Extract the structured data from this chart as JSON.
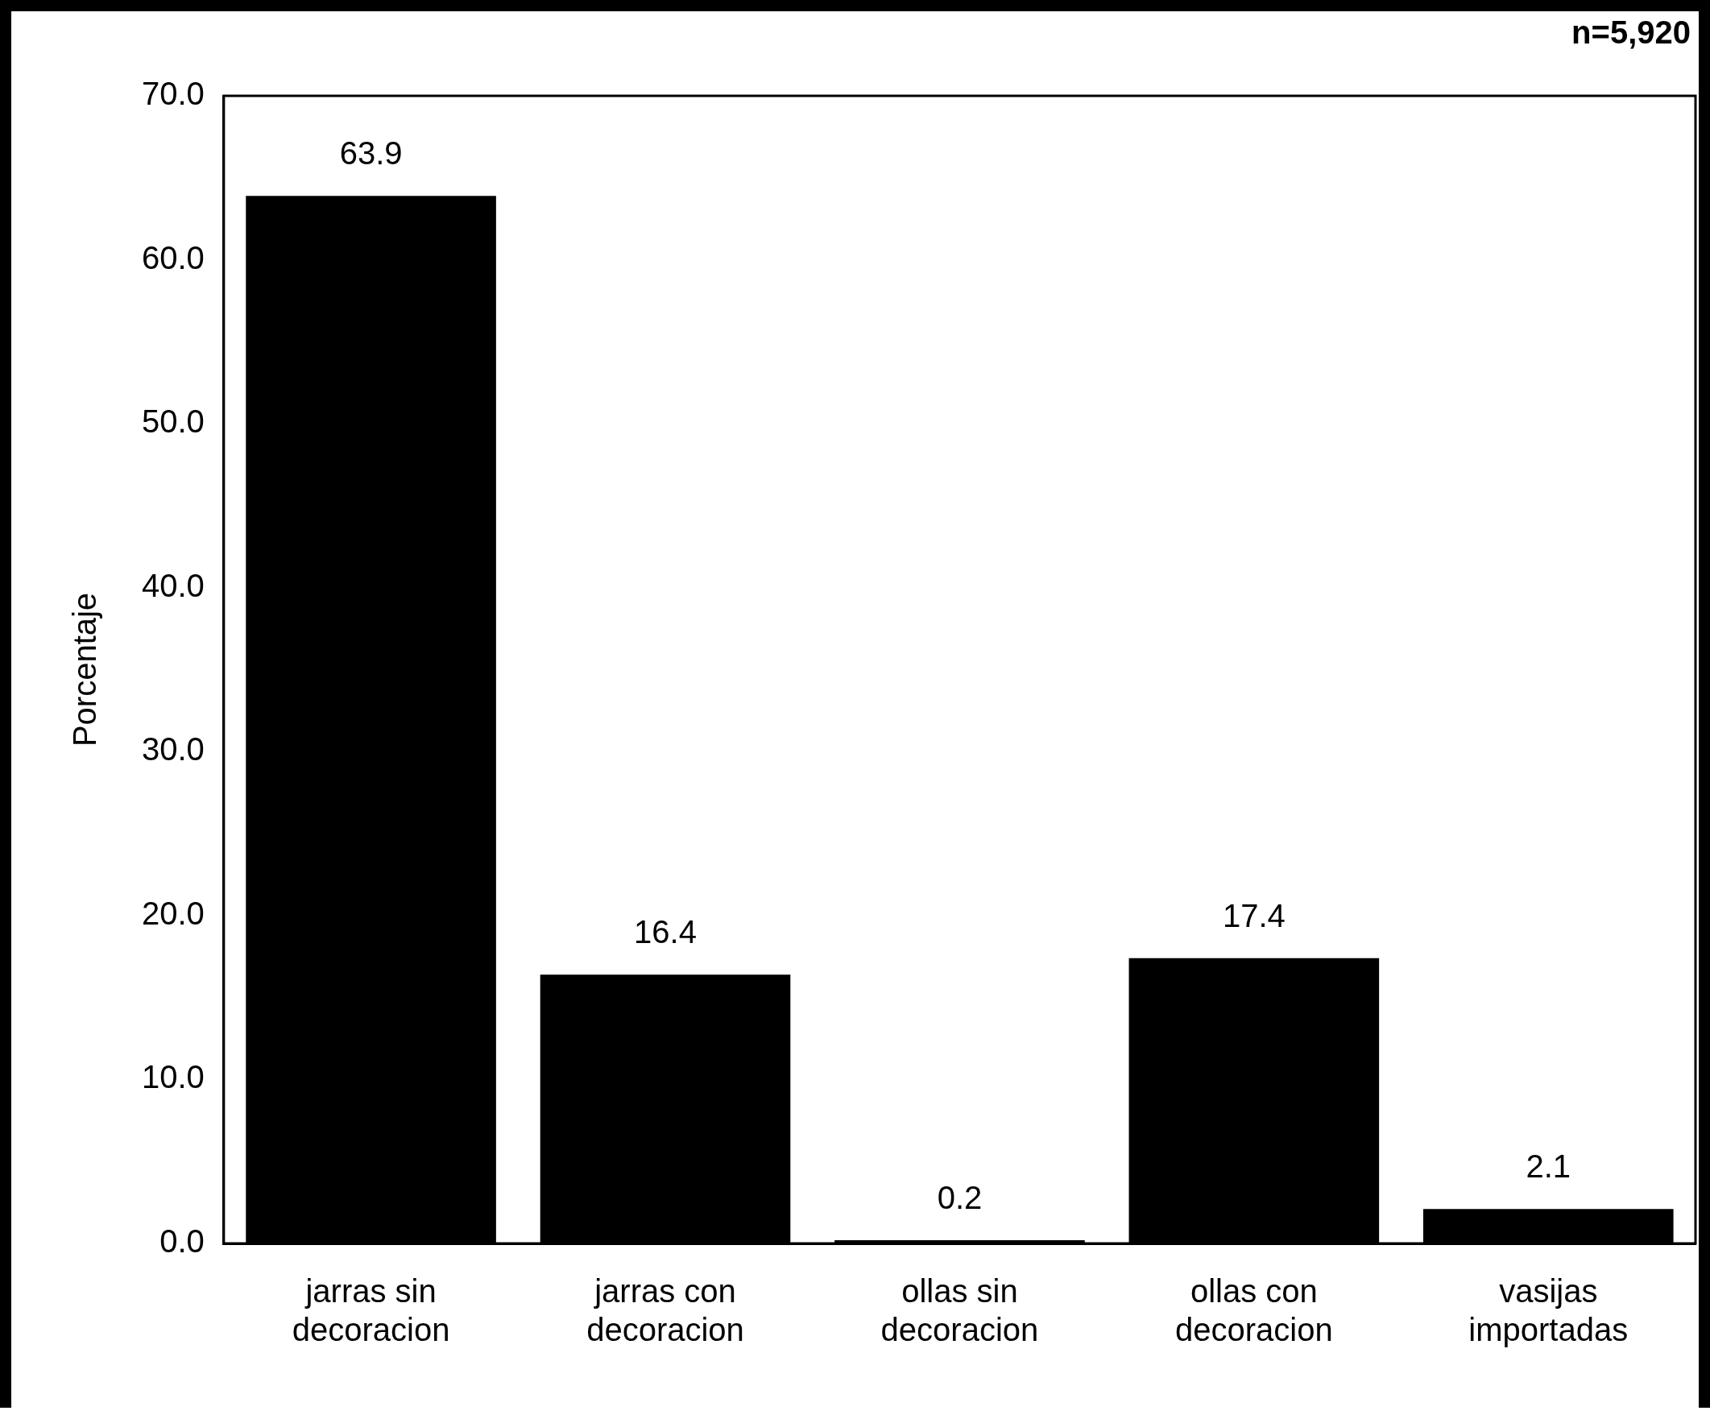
{
  "chart_data": {
    "type": "bar",
    "ylabel": "Porcentaje",
    "categories": [
      "jarras sin decoracion",
      "jarras con decoracion",
      "ollas sin decoracion",
      "ollas con decoracion",
      "vasijas importadas"
    ],
    "values": [
      63.9,
      16.4,
      0.2,
      17.4,
      2.1
    ],
    "color": "#000000",
    "data_labels": true,
    "ylim": [
      0,
      70
    ],
    "yticks": [
      {
        "value": 0,
        "label": "0.0"
      },
      {
        "value": 10,
        "label": "10.0"
      },
      {
        "value": 20,
        "label": "20.0"
      },
      {
        "value": 30,
        "label": "30.0"
      },
      {
        "value": 40,
        "label": "40.0"
      },
      {
        "value": 50,
        "label": "50.0"
      },
      {
        "value": 60,
        "label": "60.0"
      },
      {
        "value": 70,
        "label": "70.0"
      }
    ],
    "grid": false,
    "legend": false,
    "annotations": [
      "n=5,920"
    ]
  }
}
